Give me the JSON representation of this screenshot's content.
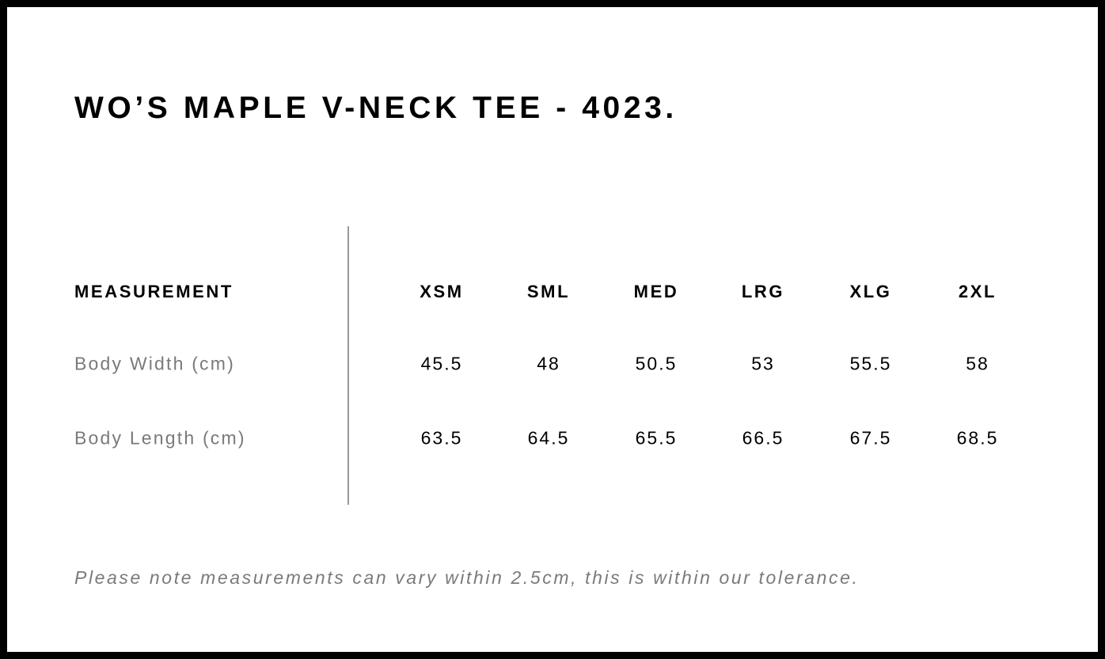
{
  "title": "WO’S MAPLE V-NECK TEE - 4023.",
  "table": {
    "header": "MEASUREMENT",
    "sizes": [
      "XSM",
      "SML",
      "MED",
      "LRG",
      "XLG",
      "2XL"
    ],
    "rows": [
      {
        "label": "Body Width (cm)",
        "values": [
          "45.5",
          "48",
          "50.5",
          "53",
          "55.5",
          "58"
        ]
      },
      {
        "label": "Body Length (cm)",
        "values": [
          "63.5",
          "64.5",
          "65.5",
          "66.5",
          "67.5",
          "68.5"
        ]
      }
    ]
  },
  "note": "Please note measurements can vary within 2.5cm, this is within our tolerance.",
  "colors": {
    "border": "#000000",
    "label_grey": "#7a7a7a",
    "divider": "#999999"
  }
}
